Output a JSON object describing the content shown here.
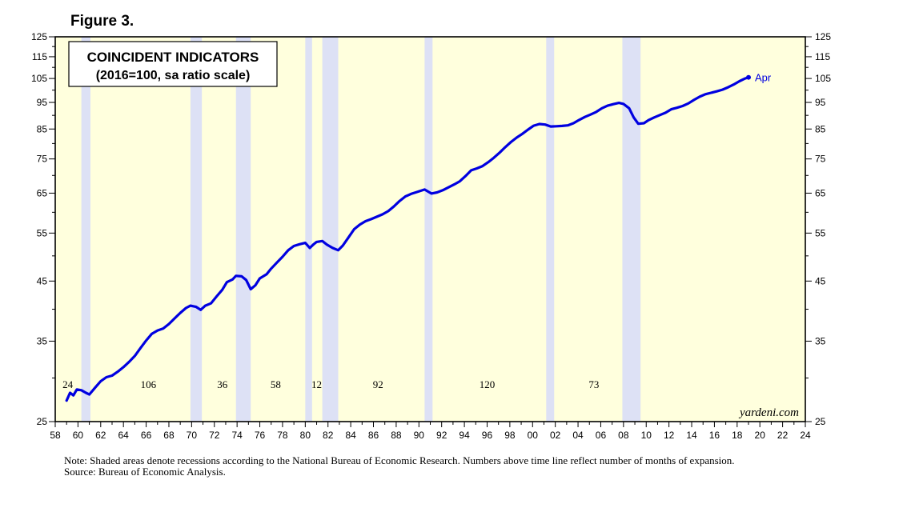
{
  "figure_label": "Figure 3.",
  "chart_data": {
    "type": "line",
    "title": "COINCIDENT INDICATORS",
    "subtitle": "(2016=100, sa ratio scale)",
    "xlabel": "",
    "ylabel": "",
    "y_scale": "log",
    "xlim": [
      1958,
      2024
    ],
    "ylim": [
      25,
      125
    ],
    "y_ticks_labeled": [
      25,
      35,
      45,
      55,
      65,
      75,
      85,
      95,
      105,
      115,
      125
    ],
    "y_ticks_minor": [
      30,
      40,
      50,
      60,
      70,
      80,
      90,
      100,
      110,
      120
    ],
    "x_ticks": [
      1958,
      1960,
      1962,
      1964,
      1966,
      1968,
      1970,
      1972,
      1974,
      1976,
      1978,
      1980,
      1982,
      1984,
      1986,
      1988,
      1990,
      1992,
      1994,
      1996,
      1998,
      2000,
      2002,
      2004,
      2006,
      2008,
      2010,
      2012,
      2014,
      2016,
      2018,
      2020,
      2022,
      2024
    ],
    "x_tick_labels": [
      "58",
      "60",
      "62",
      "64",
      "66",
      "68",
      "70",
      "72",
      "74",
      "76",
      "78",
      "80",
      "82",
      "84",
      "86",
      "88",
      "90",
      "92",
      "94",
      "96",
      "98",
      "00",
      "02",
      "04",
      "06",
      "08",
      "10",
      "12",
      "14",
      "16",
      "18",
      "20",
      "22",
      "24"
    ],
    "background_color": "#FFFFDD",
    "recession_color": "#DDE1F5",
    "line_color": "#0000E0",
    "recessions": [
      [
        1960.3,
        1961.1
      ],
      [
        1969.9,
        1970.9
      ],
      [
        1973.9,
        1975.2
      ],
      [
        1980.0,
        1980.6
      ],
      [
        1981.5,
        1982.9
      ],
      [
        1990.5,
        1991.2
      ],
      [
        2001.2,
        2001.9
      ],
      [
        2007.9,
        2009.5
      ]
    ],
    "expansion_labels": [
      {
        "x": 1959.1,
        "label": "24"
      },
      {
        "x": 1966.2,
        "label": "106"
      },
      {
        "x": 1972.7,
        "label": "36"
      },
      {
        "x": 1977.4,
        "label": "58"
      },
      {
        "x": 1981.0,
        "label": "12"
      },
      {
        "x": 1986.4,
        "label": "92"
      },
      {
        "x": 1996.0,
        "label": "120"
      },
      {
        "x": 2005.4,
        "label": "73"
      }
    ],
    "series": [
      {
        "values": [
          [
            1959.0,
            27.3
          ],
          [
            1959.3,
            28.2
          ],
          [
            1959.6,
            27.9
          ],
          [
            1959.9,
            28.6
          ],
          [
            1960.3,
            28.5
          ],
          [
            1960.7,
            28.2
          ],
          [
            1961.0,
            28.0
          ],
          [
            1961.5,
            28.8
          ],
          [
            1962.0,
            29.6
          ],
          [
            1962.5,
            30.1
          ],
          [
            1963.0,
            30.3
          ],
          [
            1963.5,
            30.8
          ],
          [
            1964.0,
            31.4
          ],
          [
            1964.5,
            32.1
          ],
          [
            1965.0,
            32.9
          ],
          [
            1965.5,
            34.0
          ],
          [
            1966.0,
            35.1
          ],
          [
            1966.5,
            36.1
          ],
          [
            1967.0,
            36.6
          ],
          [
            1967.5,
            36.9
          ],
          [
            1968.0,
            37.6
          ],
          [
            1968.5,
            38.5
          ],
          [
            1969.0,
            39.4
          ],
          [
            1969.5,
            40.2
          ],
          [
            1969.9,
            40.6
          ],
          [
            1970.4,
            40.4
          ],
          [
            1970.8,
            39.9
          ],
          [
            1971.2,
            40.6
          ],
          [
            1971.7,
            41.0
          ],
          [
            1972.2,
            42.2
          ],
          [
            1972.7,
            43.4
          ],
          [
            1973.1,
            44.8
          ],
          [
            1973.6,
            45.3
          ],
          [
            1973.9,
            46.0
          ],
          [
            1974.4,
            45.9
          ],
          [
            1974.8,
            45.2
          ],
          [
            1975.2,
            43.5
          ],
          [
            1975.6,
            44.2
          ],
          [
            1976.0,
            45.5
          ],
          [
            1976.6,
            46.3
          ],
          [
            1977.0,
            47.4
          ],
          [
            1977.5,
            48.6
          ],
          [
            1978.0,
            49.8
          ],
          [
            1978.5,
            51.2
          ],
          [
            1979.0,
            52.1
          ],
          [
            1979.5,
            52.5
          ],
          [
            1980.0,
            52.8
          ],
          [
            1980.4,
            51.7
          ],
          [
            1980.7,
            52.4
          ],
          [
            1981.0,
            53.0
          ],
          [
            1981.5,
            53.2
          ],
          [
            1981.9,
            52.4
          ],
          [
            1982.4,
            51.7
          ],
          [
            1982.9,
            51.2
          ],
          [
            1983.3,
            52.2
          ],
          [
            1983.8,
            54.0
          ],
          [
            1984.3,
            55.9
          ],
          [
            1984.8,
            57.0
          ],
          [
            1985.3,
            57.8
          ],
          [
            1985.8,
            58.3
          ],
          [
            1986.3,
            58.9
          ],
          [
            1986.8,
            59.5
          ],
          [
            1987.3,
            60.3
          ],
          [
            1987.8,
            61.5
          ],
          [
            1988.3,
            62.9
          ],
          [
            1988.8,
            64.1
          ],
          [
            1989.3,
            64.8
          ],
          [
            1989.8,
            65.3
          ],
          [
            1990.5,
            66.0
          ],
          [
            1991.1,
            64.9
          ],
          [
            1991.6,
            65.2
          ],
          [
            1992.1,
            65.8
          ],
          [
            1992.6,
            66.6
          ],
          [
            1993.1,
            67.4
          ],
          [
            1993.6,
            68.3
          ],
          [
            1994.1,
            69.8
          ],
          [
            1994.6,
            71.5
          ],
          [
            1995.1,
            72.1
          ],
          [
            1995.6,
            72.8
          ],
          [
            1996.1,
            74.0
          ],
          [
            1996.6,
            75.4
          ],
          [
            1997.1,
            77.0
          ],
          [
            1997.6,
            78.8
          ],
          [
            1998.1,
            80.5
          ],
          [
            1998.6,
            82.0
          ],
          [
            1999.1,
            83.3
          ],
          [
            1999.6,
            84.8
          ],
          [
            2000.1,
            86.2
          ],
          [
            2000.6,
            86.8
          ],
          [
            2001.1,
            86.6
          ],
          [
            2001.6,
            85.9
          ],
          [
            2002.1,
            86.0
          ],
          [
            2002.6,
            86.1
          ],
          [
            2003.1,
            86.3
          ],
          [
            2003.6,
            87.1
          ],
          [
            2004.1,
            88.3
          ],
          [
            2004.6,
            89.4
          ],
          [
            2005.1,
            90.3
          ],
          [
            2005.6,
            91.3
          ],
          [
            2006.1,
            92.7
          ],
          [
            2006.6,
            93.7
          ],
          [
            2007.1,
            94.3
          ],
          [
            2007.6,
            94.8
          ],
          [
            2008.0,
            94.4
          ],
          [
            2008.5,
            92.7
          ],
          [
            2008.9,
            89.2
          ],
          [
            2009.3,
            86.9
          ],
          [
            2009.8,
            87.1
          ],
          [
            2010.2,
            88.2
          ],
          [
            2010.7,
            89.2
          ],
          [
            2011.2,
            90.1
          ],
          [
            2011.7,
            91.0
          ],
          [
            2012.2,
            92.3
          ],
          [
            2012.7,
            92.9
          ],
          [
            2013.2,
            93.6
          ],
          [
            2013.7,
            94.6
          ],
          [
            2014.2,
            96.0
          ],
          [
            2014.7,
            97.3
          ],
          [
            2015.2,
            98.3
          ],
          [
            2015.7,
            98.9
          ],
          [
            2016.2,
            99.5
          ],
          [
            2016.7,
            100.2
          ],
          [
            2017.2,
            101.2
          ],
          [
            2017.7,
            102.4
          ],
          [
            2018.2,
            103.8
          ],
          [
            2018.7,
            105.0
          ],
          [
            2019.0,
            105.5
          ]
        ]
      }
    ],
    "end_label": "Apr",
    "watermark": "yardeni.com",
    "grid": false,
    "legend": "none"
  },
  "notes": {
    "note": "Note: Shaded areas denote recessions according to the National Bureau of Economic Research. Numbers above time line reflect number of months of expansion.",
    "source": "Source: Bureau of Economic Analysis."
  }
}
